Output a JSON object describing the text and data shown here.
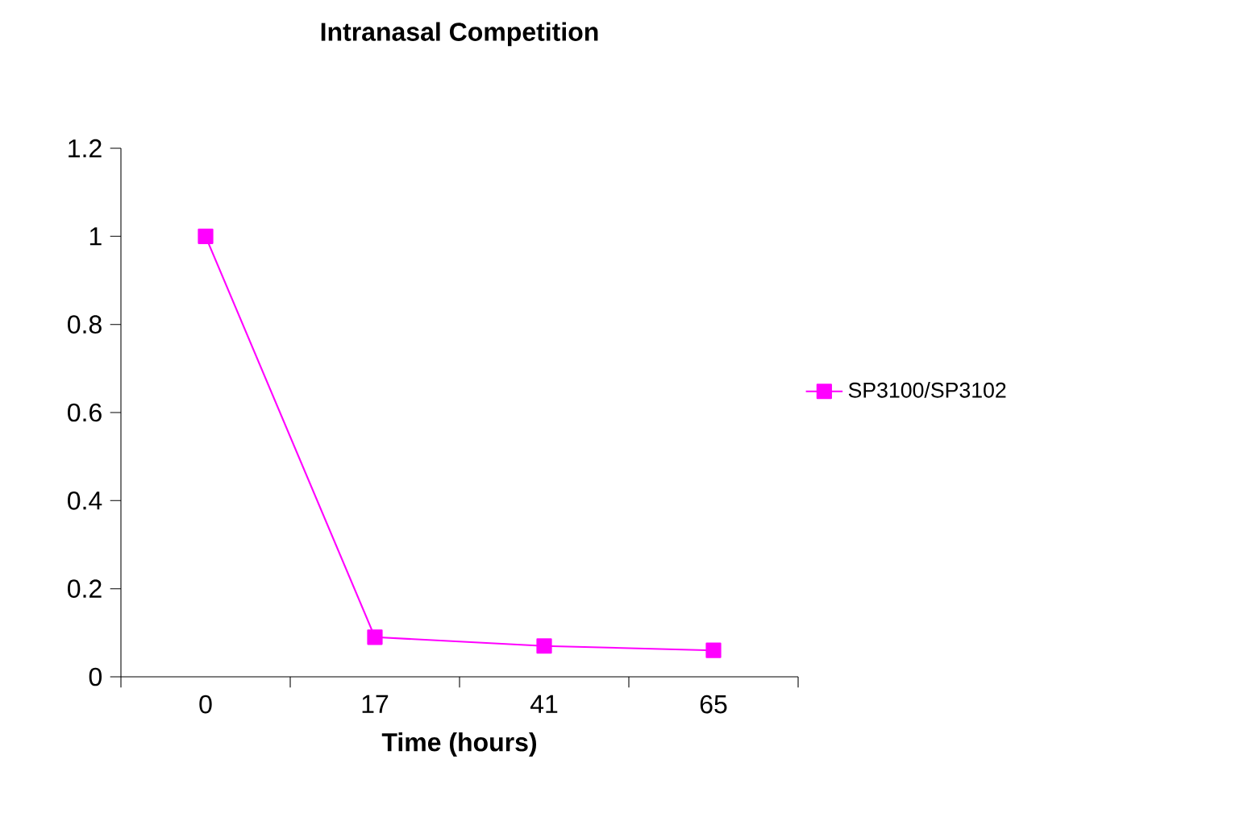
{
  "chart_data": {
    "type": "line",
    "title": "Intranasal Competition",
    "xlabel": "Time (hours)",
    "categories": [
      "0",
      "17",
      "41",
      "65"
    ],
    "series": [
      {
        "name": "SP3100/SP3102",
        "color": "#ff00ff",
        "values": [
          1,
          0.09,
          0.07,
          0.06
        ]
      }
    ],
    "ylim": [
      0,
      1.2
    ],
    "yticks": [
      0,
      0.2,
      0.4,
      0.6,
      0.8,
      1,
      1.2
    ],
    "grid": false,
    "legend": "right",
    "marker": "square",
    "line_style": "solid"
  }
}
